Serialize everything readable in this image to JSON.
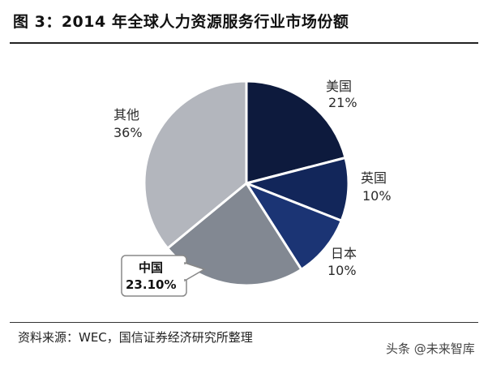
{
  "figure": {
    "title": "图 3：2014 年全球人力资源服务行业市场份额",
    "source": "资料来源：WEC，国信证券经济研究所整理",
    "watermark": "头条 @未来智库"
  },
  "chart_data": {
    "type": "pie",
    "title": "图 3：2014 年全球人力资源服务行业市场份额",
    "slices": [
      {
        "label": "美国",
        "value": 21,
        "value_label": "21%",
        "color": "#0d1a3d"
      },
      {
        "label": "英国",
        "value": 10,
        "value_label": "10%",
        "color": "#12265a"
      },
      {
        "label": "日本",
        "value": 10,
        "value_label": "10%",
        "color": "#1b3474"
      },
      {
        "label": "中国",
        "value": 23.1,
        "value_label": "23.10%",
        "color": "#828892"
      },
      {
        "label": "其他",
        "value": 36,
        "value_label": "36%",
        "color": "#b3b6bd"
      }
    ],
    "start_angle_deg": 0,
    "direction": "clockwise",
    "highlight": "中国",
    "edge_color": "#ffffff"
  }
}
